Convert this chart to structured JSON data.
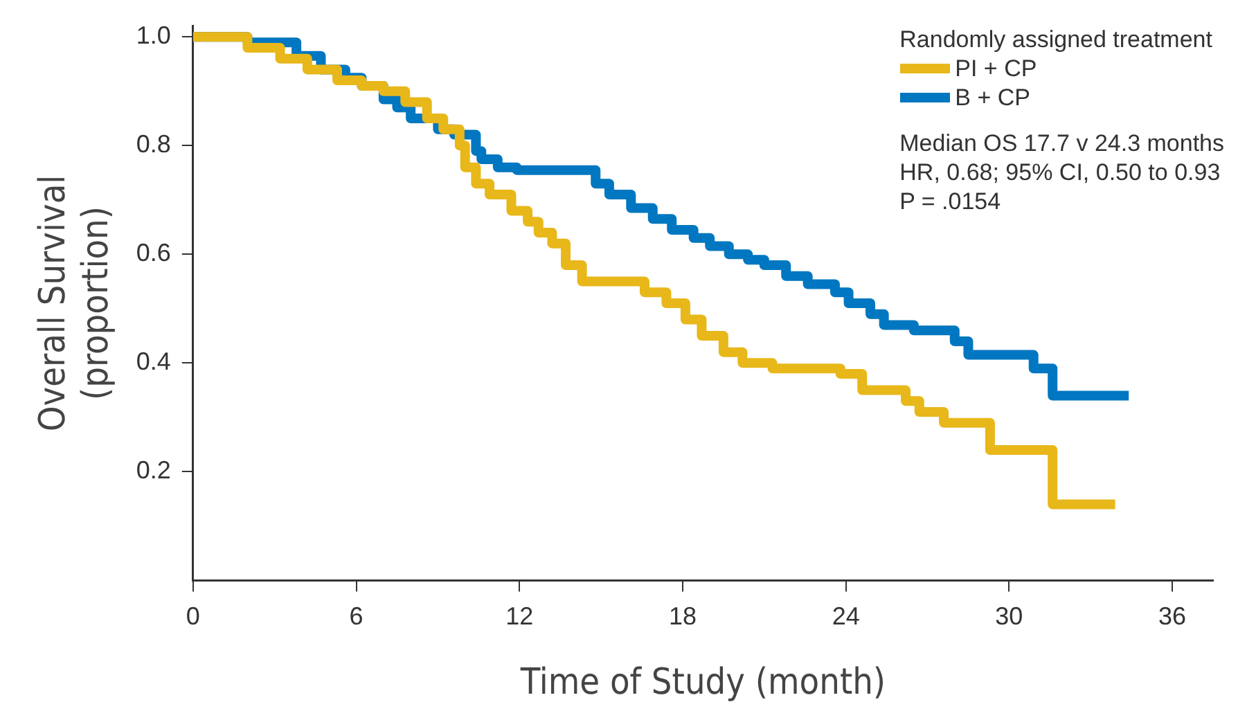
{
  "chart_data": {
    "type": "step",
    "xlabel": "Time of Study (month)",
    "ylabel": "Overall Survival\n(proportion)",
    "legend_title": "Randomly assigned treatment",
    "legend": "top right",
    "marker": "none",
    "line_style": "solid",
    "grid": false,
    "xlim": [
      0,
      37.5
    ],
    "xticks": [
      0,
      6,
      12,
      18,
      24,
      30,
      36
    ],
    "ylim": [
      0,
      1.02
    ],
    "yticks": [
      {
        "value": 0.2,
        "label": "0.2"
      },
      {
        "value": 0.4,
        "label": "0.4"
      },
      {
        "value": 0.6,
        "label": "0.6"
      },
      {
        "value": 0.8,
        "label": "0.8"
      },
      {
        "value": 1,
        "label": "1.0"
      }
    ],
    "series": [
      {
        "name": "PI + CP",
        "color": "#e8b71a",
        "x": [
          0,
          2.0,
          3.2,
          4.2,
          5.3,
          6.2,
          7.0,
          7.8,
          8.6,
          9.2,
          9.8,
          10.0,
          10.4,
          10.9,
          11.7,
          12.3,
          12.7,
          13.2,
          13.7,
          14.3,
          16.6,
          17.4,
          18.1,
          18.7,
          19.5,
          20.2,
          21.3,
          23.8,
          24.6,
          26.2,
          26.7,
          27.6,
          29.3,
          31.6,
          33.9
        ],
        "values": [
          1.0,
          0.98,
          0.96,
          0.94,
          0.92,
          0.91,
          0.9,
          0.88,
          0.85,
          0.83,
          0.8,
          0.76,
          0.73,
          0.71,
          0.68,
          0.66,
          0.64,
          0.62,
          0.58,
          0.55,
          0.53,
          0.51,
          0.48,
          0.45,
          0.42,
          0.4,
          0.39,
          0.38,
          0.35,
          0.33,
          0.31,
          0.29,
          0.24,
          0.14,
          0.14
        ]
      },
      {
        "name": "B + CP",
        "color": "#0077c0",
        "x": [
          0,
          2.0,
          3.8,
          4.7,
          5.6,
          6.2,
          7.0,
          7.5,
          8.0,
          9.0,
          9.6,
          10.4,
          10.6,
          11.2,
          11.9,
          14.8,
          15.3,
          16.1,
          16.9,
          17.6,
          18.4,
          19.0,
          19.7,
          20.4,
          21.0,
          21.8,
          22.6,
          23.6,
          24.1,
          24.9,
          25.4,
          26.5,
          28.0,
          28.5,
          30.9,
          31.6,
          34.4
        ],
        "values": [
          1.0,
          0.99,
          0.965,
          0.94,
          0.925,
          0.91,
          0.885,
          0.87,
          0.85,
          0.83,
          0.82,
          0.79,
          0.775,
          0.76,
          0.755,
          0.73,
          0.71,
          0.685,
          0.665,
          0.645,
          0.63,
          0.615,
          0.6,
          0.59,
          0.58,
          0.56,
          0.545,
          0.53,
          0.51,
          0.49,
          0.47,
          0.46,
          0.44,
          0.415,
          0.39,
          0.34,
          0.34
        ]
      }
    ],
    "annotations": [
      "Median OS 17.7 v 24.3 months",
      "HR, 0.68; 95% CI, 0.50 to 0.93",
      "P = .0154"
    ]
  }
}
